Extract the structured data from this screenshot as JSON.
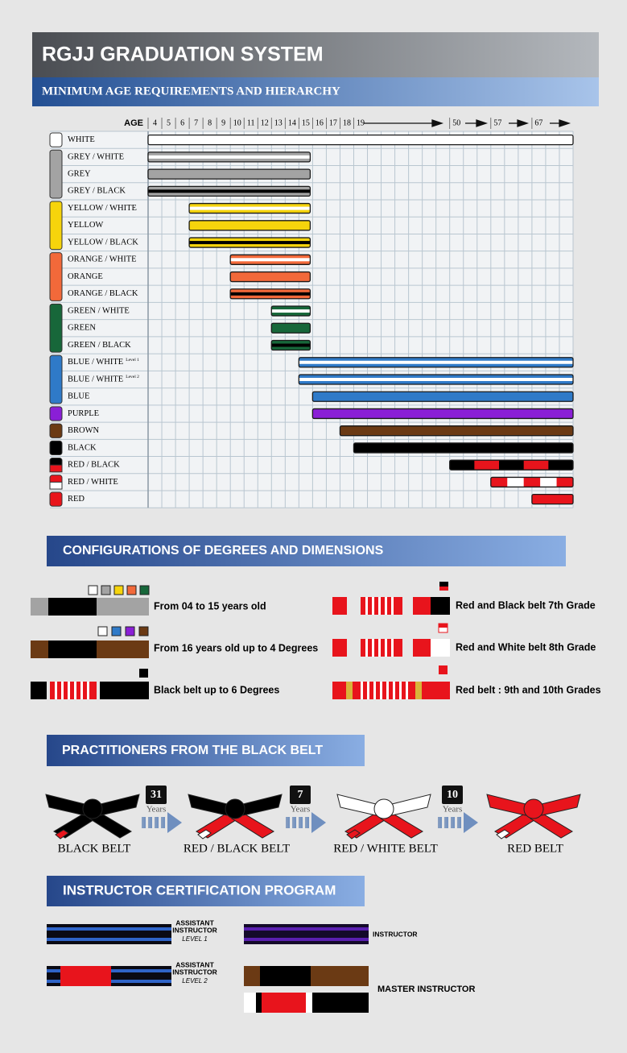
{
  "header": {
    "title": "RGJJ GRADUATION SYSTEM",
    "subtitle": "MINIMUM AGE REQUIREMENTS AND HIERARCHY"
  },
  "age_chart": {
    "axis_label": "AGE",
    "ticks": [
      4,
      5,
      6,
      7,
      8,
      9,
      10,
      11,
      12,
      13,
      14,
      15,
      16,
      17,
      18,
      19,
      50,
      57,
      67
    ],
    "belts": [
      {
        "name": "WHITE",
        "min_age": 4,
        "colors": [
          "#ffffff"
        ]
      },
      {
        "name": "GREY / WHITE",
        "min_age": 4,
        "max_age": 15,
        "colors": [
          "#a3a3a3",
          "#ffffff"
        ]
      },
      {
        "name": "GREY",
        "min_age": 4,
        "max_age": 15,
        "colors": [
          "#a3a3a3"
        ]
      },
      {
        "name": "GREY / BLACK",
        "min_age": 4,
        "max_age": 15,
        "colors": [
          "#a3a3a3",
          "#000000"
        ]
      },
      {
        "name": "YELLOW / WHITE",
        "min_age": 7,
        "max_age": 15,
        "colors": [
          "#f6d40c",
          "#ffffff"
        ]
      },
      {
        "name": "YELLOW",
        "min_age": 7,
        "max_age": 15,
        "colors": [
          "#f6d40c"
        ]
      },
      {
        "name": "YELLOW / BLACK",
        "min_age": 7,
        "max_age": 15,
        "colors": [
          "#f6d40c",
          "#000000"
        ]
      },
      {
        "name": "ORANGE / WHITE",
        "min_age": 10,
        "max_age": 15,
        "colors": [
          "#f2693a",
          "#ffffff"
        ]
      },
      {
        "name": "ORANGE",
        "min_age": 10,
        "max_age": 15,
        "colors": [
          "#f2693a"
        ]
      },
      {
        "name": "ORANGE / BLACK",
        "min_age": 10,
        "max_age": 15,
        "colors": [
          "#f2693a",
          "#000000"
        ]
      },
      {
        "name": "GREEN / WHITE",
        "min_age": 13,
        "max_age": 15,
        "colors": [
          "#17673a",
          "#ffffff"
        ]
      },
      {
        "name": "GREEN",
        "min_age": 13,
        "max_age": 15,
        "colors": [
          "#17673a"
        ]
      },
      {
        "name": "GREEN / BLACK",
        "min_age": 13,
        "max_age": 15,
        "colors": [
          "#17673a",
          "#000000"
        ]
      },
      {
        "name": "BLUE / WHITE",
        "level": "Level 1",
        "min_age": 15,
        "colors": [
          "#2f7ac8",
          "#ffffff"
        ]
      },
      {
        "name": "BLUE / WHITE",
        "level": "Level 2",
        "min_age": 15,
        "colors": [
          "#2f7ac8",
          "#ffffff"
        ]
      },
      {
        "name": "BLUE",
        "min_age": 16,
        "colors": [
          "#2f7ac8"
        ]
      },
      {
        "name": "PURPLE",
        "min_age": 16,
        "colors": [
          "#8a1fd6"
        ]
      },
      {
        "name": "BROWN",
        "min_age": 18,
        "colors": [
          "#6b3a14"
        ]
      },
      {
        "name": "BLACK",
        "min_age": 19,
        "colors": [
          "#000000"
        ]
      },
      {
        "name": "RED / BLACK",
        "min_age": 50,
        "colors": [
          "#000000",
          "#e8141c"
        ],
        "pattern": "blocks"
      },
      {
        "name": "RED / WHITE",
        "min_age": 57,
        "colors": [
          "#e8141c",
          "#ffffff"
        ],
        "pattern": "blocks"
      },
      {
        "name": "RED",
        "min_age": 67,
        "colors": [
          "#e8141c"
        ]
      }
    ]
  },
  "configurations": {
    "title": "CONFIGURATIONS OF DEGREES AND DIMENSIONS",
    "items": [
      "From 04 to 15 years old",
      "From 16 years old up to 4 Degrees",
      "Black belt up to 6 Degrees",
      "Red and Black belt 7th Grade",
      "Red and White belt 8th Grade",
      "Red belt : 9th and 10th Grades"
    ]
  },
  "practitioners": {
    "title": "PRACTITIONERS FROM THE BLACK BELT",
    "belts": [
      "BLACK BELT",
      "RED / BLACK BELT",
      "RED / WHITE BELT",
      "RED BELT"
    ],
    "transitions": [
      {
        "years": 31,
        "unit": "Years"
      },
      {
        "years": 7,
        "unit": "Years"
      },
      {
        "years": 10,
        "unit": "Years"
      }
    ]
  },
  "instructors": {
    "title": "INSTRUCTOR CERTIFICATION PROGRAM",
    "levels": [
      {
        "lines": [
          "ASSISTANT",
          "INSTRUCTOR"
        ],
        "level": "LEVEL 1"
      },
      {
        "lines": [
          "ASSISTANT",
          "INSTRUCTOR"
        ],
        "level": "LEVEL 2"
      },
      {
        "lines": [
          "INSTRUCTOR"
        ]
      },
      {
        "lines": [
          "MASTER INSTRUCTOR"
        ]
      }
    ]
  }
}
